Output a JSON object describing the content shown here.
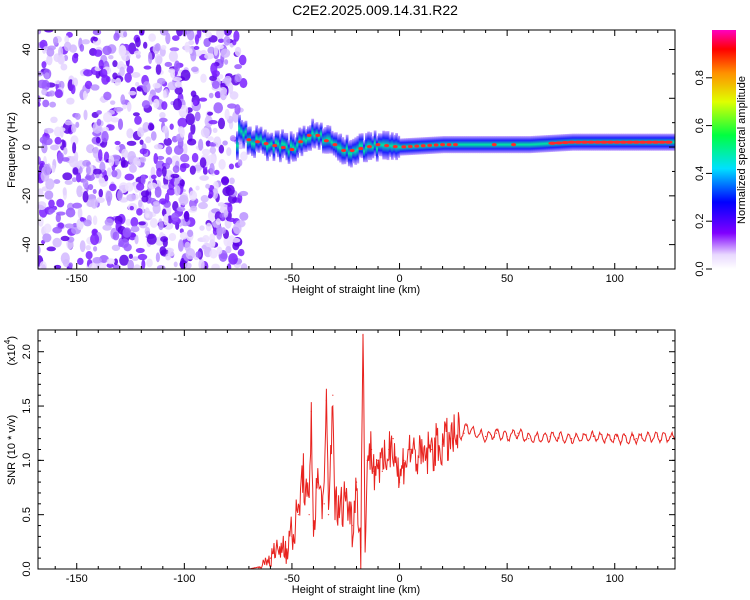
{
  "title": "C2E2.2025.009.14.31.R22",
  "colors": {
    "snr_line": "#e8231f",
    "spec_low": "#8a2be2",
    "spec_high": "#ff2020",
    "band_mid": "#00e0a0"
  },
  "chart_data": [
    {
      "type": "heatmap",
      "xlabel": "Height of straight line (km)",
      "ylabel": "Frequency (Hz)",
      "xlim": [
        -168,
        128
      ],
      "ylim": [
        -50,
        48
      ],
      "xticks": [
        -150,
        -100,
        -50,
        0,
        50,
        100
      ],
      "yticks": [
        -40,
        -20,
        0,
        20,
        40
      ],
      "description_series": [
        {
          "x_range": [
            -168,
            -75
          ],
          "pattern": "broadband noise",
          "amplitude_range": [
            0.1,
            0.3
          ]
        },
        {
          "x_range": [
            -75,
            128
          ],
          "pattern": "narrow band",
          "center_freq": 1,
          "amplitude_range": [
            0.4,
            0.95
          ]
        }
      ],
      "band_center": [
        {
          "x": -75,
          "y": 8
        },
        {
          "x": -70,
          "y": 3
        },
        {
          "x": -60,
          "y": 1
        },
        {
          "x": -50,
          "y": -1
        },
        {
          "x": -45,
          "y": 3
        },
        {
          "x": -40,
          "y": 6
        },
        {
          "x": -35,
          "y": 3
        },
        {
          "x": -30,
          "y": 1
        },
        {
          "x": -25,
          "y": -2
        },
        {
          "x": -20,
          "y": -1
        },
        {
          "x": -10,
          "y": 1
        },
        {
          "x": 0,
          "y": 0
        },
        {
          "x": 20,
          "y": 1
        },
        {
          "x": 40,
          "y": 1
        },
        {
          "x": 60,
          "y": 1
        },
        {
          "x": 80,
          "y": 2
        },
        {
          "x": 100,
          "y": 2
        },
        {
          "x": 128,
          "y": 2
        }
      ],
      "colorbar": {
        "label": "Normalized spectral amplitude",
        "ticks": [
          "0.0",
          "0.2",
          "0.4",
          "0.6",
          "0.8"
        ],
        "range": [
          0,
          1
        ]
      }
    },
    {
      "type": "line",
      "xlabel": "Height of straight line (km)",
      "ylabel": "SNR (10 * v/v)",
      "scale_note": "(x10",
      "scale_exp": "4",
      "scale_close": ")",
      "xlim": [
        -168,
        128
      ],
      "ylim": [
        0.0,
        2.2
      ],
      "xticks": [
        -150,
        -100,
        -50,
        0,
        50,
        100
      ],
      "yticks": [
        "0.0",
        "0.5",
        "1.0",
        "1.5",
        "2.0"
      ],
      "series": [
        {
          "x": [
            -168,
            -100,
            -70,
            -65,
            -60,
            -55,
            -50,
            -47,
            -45,
            -42,
            -41,
            -40,
            -38,
            -35,
            -34,
            -33,
            -31,
            -30,
            -28,
            -25,
            -22,
            -20,
            -18,
            -17,
            -16,
            -15,
            -13,
            -12,
            -10,
            -8,
            -5,
            -3,
            0,
            2,
            5,
            10,
            15,
            20,
            25,
            30,
            31,
            35,
            40,
            45,
            50,
            55,
            60,
            70,
            80,
            90,
            100,
            110,
            120,
            128
          ],
          "y": [
            0.0,
            0.0,
            0.0,
            0.02,
            0.1,
            0.2,
            0.3,
            0.5,
            0.9,
            0.5,
            1.45,
            0.4,
            0.8,
            0.6,
            1.55,
            0.5,
            1.6,
            0.6,
            0.5,
            0.7,
            0.4,
            0.8,
            0.2,
            2.15,
            0.3,
            1.0,
            1.1,
            0.9,
            1.0,
            0.9,
            1.1,
            1.2,
            0.8,
            1.0,
            1.1,
            1.0,
            1.1,
            1.15,
            1.2,
            1.25,
            1.32,
            1.25,
            1.22,
            1.25,
            1.22,
            1.25,
            1.2,
            1.22,
            1.2,
            1.22,
            1.2,
            1.2,
            1.22,
            1.2
          ]
        }
      ]
    }
  ]
}
